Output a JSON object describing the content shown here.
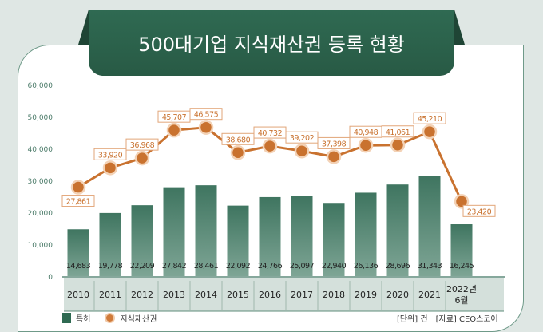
{
  "title": "500대기업 지식재산권 등록 현황",
  "chart_data": {
    "type": "bar+line",
    "title": "500대기업 지식재산권 등록 현황",
    "categories": [
      "2010",
      "2011",
      "2012",
      "2013",
      "2014",
      "2015",
      "2016",
      "2017",
      "2018",
      "2019",
      "2020",
      "2021",
      "2022년 6월"
    ],
    "series": [
      {
        "name": "특허",
        "type": "bar",
        "color": "#3f7560",
        "values": [
          14683,
          19778,
          22209,
          27842,
          28461,
          22092,
          24766,
          25097,
          22940,
          26136,
          28696,
          31343,
          16245
        ],
        "labels": [
          "14,683",
          "19,778",
          "22,209",
          "27,842",
          "28,461",
          "22,092",
          "24,766",
          "25,097",
          "22,940",
          "26,136",
          "28,696",
          "31,343",
          "16,245"
        ]
      },
      {
        "name": "지식재산권",
        "type": "line",
        "color": "#d07a3a",
        "values": [
          27861,
          33920,
          36968,
          45707,
          46575,
          38680,
          40732,
          39202,
          37398,
          40948,
          41061,
          45210,
          23420
        ],
        "labels": [
          "27,861",
          "33,920",
          "36,968",
          "45,707",
          "46,575",
          "38,680",
          "40,732",
          "39,202",
          "37,398",
          "40,948",
          "41,061",
          "45,210",
          "23,420"
        ]
      }
    ],
    "yticks": [
      "0",
      "10,000",
      "20,000",
      "30,000",
      "40,000",
      "50,000",
      "60,000"
    ],
    "ylim": [
      0,
      60000
    ],
    "legend_position": "bottom-left"
  },
  "unit_note": "[단위] 건",
  "source_note": "[자료] CEO스코어"
}
